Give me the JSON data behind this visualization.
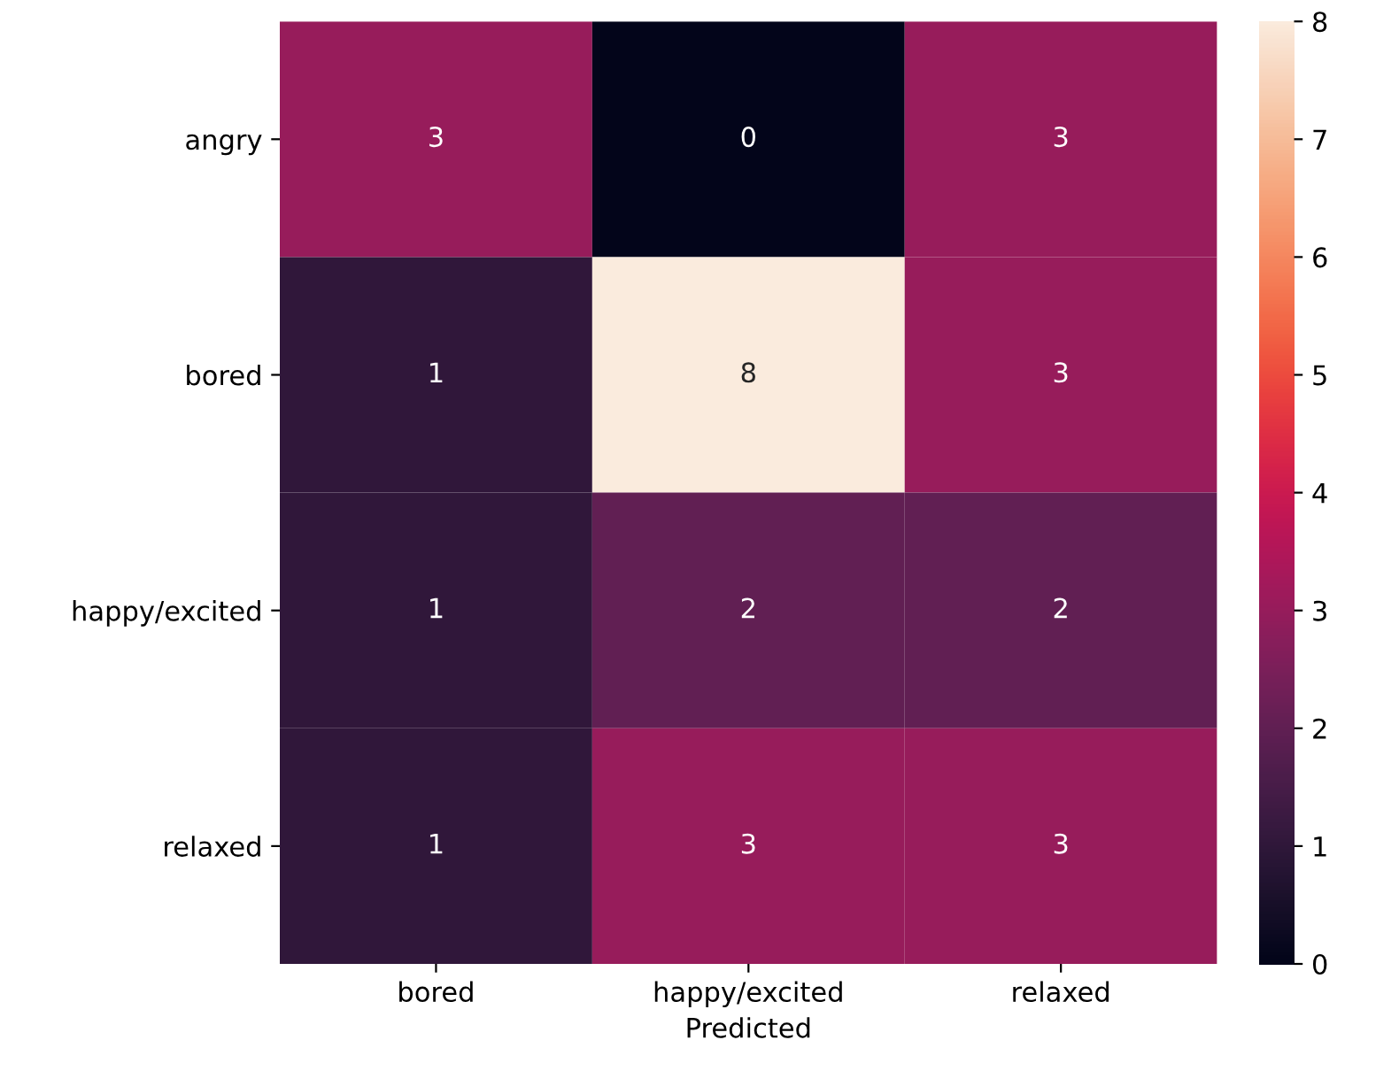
{
  "chart_data": {
    "type": "heatmap",
    "xlabel": "Predicted",
    "categories": [
      "bored",
      "happy/excited",
      "relaxed"
    ],
    "y_categories": [
      "angry",
      "bored",
      "happy/excited",
      "relaxed"
    ],
    "cells": [
      [
        3,
        0,
        3
      ],
      [
        1,
        8,
        3
      ],
      [
        1,
        2,
        2
      ],
      [
        1,
        3,
        3
      ]
    ],
    "data_labels": true,
    "clim": [
      0,
      8
    ],
    "cticks": [
      0,
      1,
      2,
      3,
      4,
      5,
      6,
      7,
      8
    ]
  }
}
